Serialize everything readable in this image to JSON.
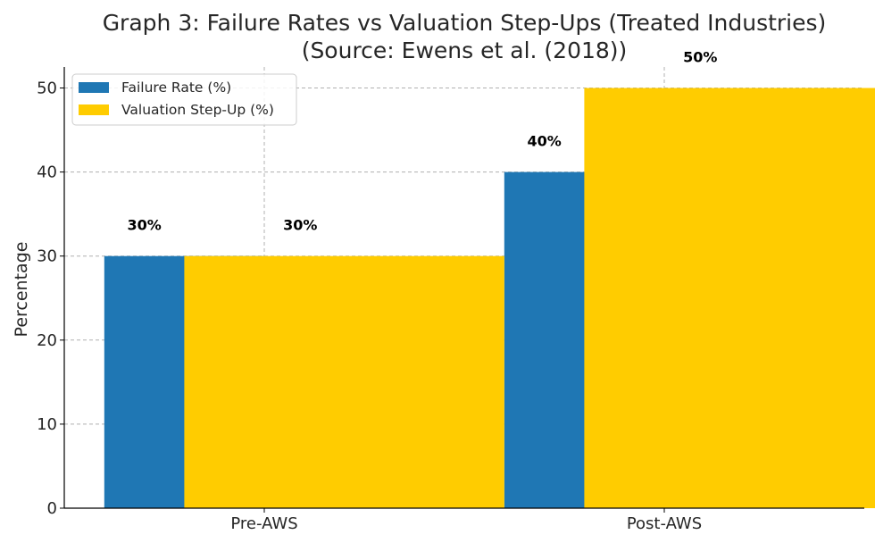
{
  "colors": {
    "failure": "#1f77b4",
    "valuation": "#ffcc00",
    "axis": "#000000",
    "text": "#262626"
  },
  "chart_data": {
    "type": "bar",
    "title_lines": [
      "Graph 3: Failure Rates vs Valuation Step-Ups (Treated Industries)",
      "(Source: Ewens et al. (2018))"
    ],
    "xlabel": "",
    "ylabel": "Percentage",
    "categories": [
      "Pre-AWS",
      "Post-AWS"
    ],
    "series": [
      {
        "name": "Failure Rate (%)",
        "values": [
          30,
          40
        ],
        "labels": [
          "30%",
          "40%"
        ]
      },
      {
        "name": "Valuation Step-Up (%)",
        "values": [
          30,
          50
        ],
        "labels": [
          "30%",
          "50%"
        ]
      }
    ],
    "ylim": [
      0,
      52.5
    ],
    "yticks": [
      0,
      10,
      20,
      30,
      40,
      50
    ],
    "grid": true,
    "legend": "top-left"
  }
}
